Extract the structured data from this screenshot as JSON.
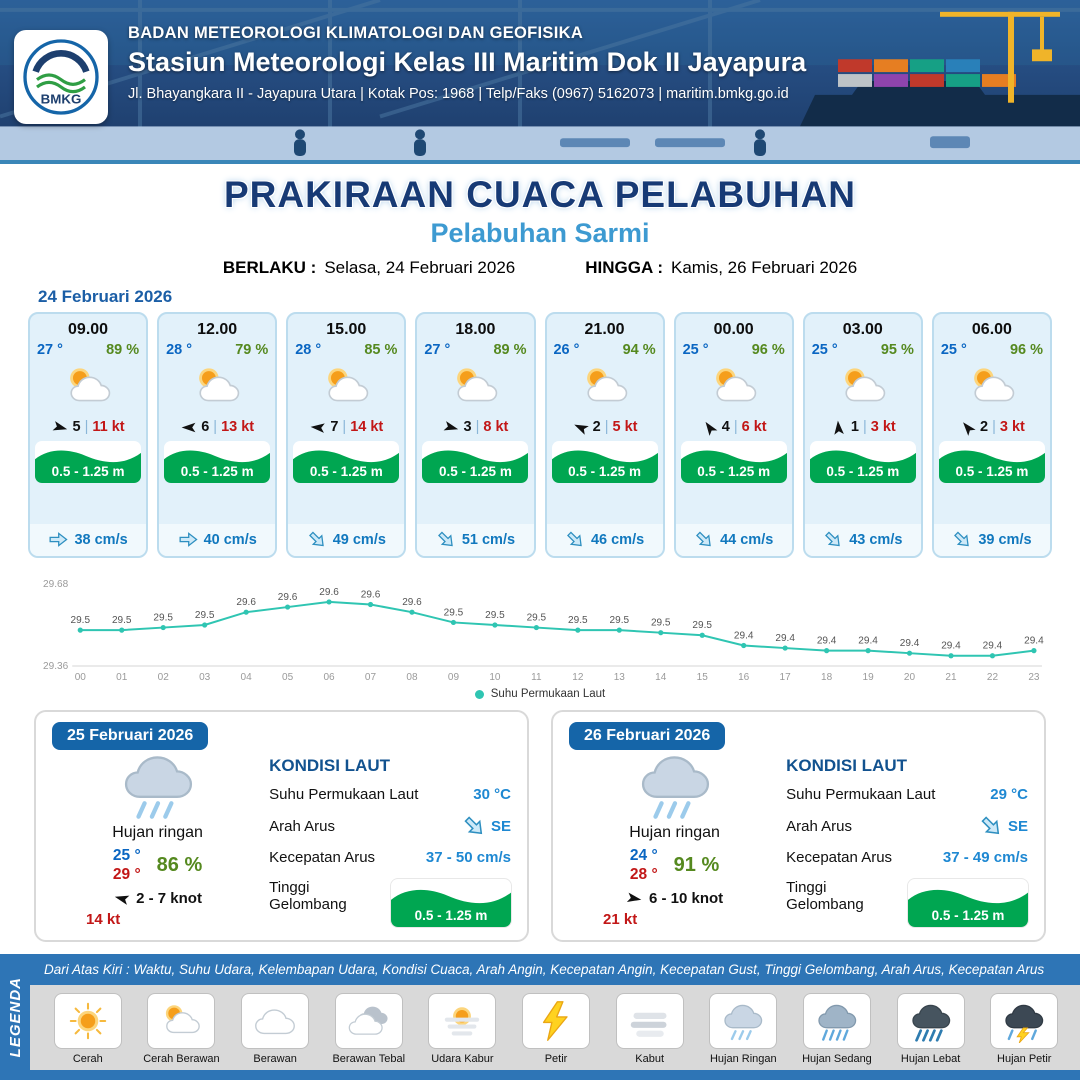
{
  "header": {
    "logo": "BMKG",
    "agency": "BADAN METEOROLOGI KLIMATOLOGI DAN GEOFISIKA",
    "station": "Stasiun Meteorologi Kelas III Maritim Dok II Jayapura",
    "address": "Jl. Bhayangkara II - Jayapura Utara | Kotak Pos: 1968 | Telp/Faks (0967) 5162073 | maritim.bmkg.go.id"
  },
  "title": {
    "main": "PRAKIRAAN CUACA PELABUHAN",
    "subtitle": "Pelabuhan Sarmi",
    "valid_from_label": "BERLAKU :",
    "valid_from": "Selasa, 24 Februari 2026",
    "valid_to_label": "HINGGA :",
    "valid_to": "Kamis, 26 Februari 2026"
  },
  "forecast": {
    "date": "24 Februari 2026",
    "separator": "|",
    "cards": [
      {
        "time": "09.00",
        "temp": "27 °",
        "humidity": "89 %",
        "icon": "cerah-berawan",
        "wind_rot": 15,
        "wind": "5",
        "gust": "11 kt",
        "wave": "0.5 - 1.25 m",
        "current_rot": 0,
        "current": "38 cm/s"
      },
      {
        "time": "12.00",
        "temp": "28 °",
        "humidity": "79 %",
        "icon": "cerah-berawan",
        "wind_rot": 180,
        "wind": "6",
        "gust": "13 kt",
        "wave": "0.5 - 1.25 m",
        "current_rot": 0,
        "current": "40 cm/s"
      },
      {
        "time": "15.00",
        "temp": "28 °",
        "humidity": "85 %",
        "icon": "cerah-berawan",
        "wind_rot": 185,
        "wind": "7",
        "gust": "14 kt",
        "wave": "0.5 - 1.25 m",
        "current_rot": 45,
        "current": "49 cm/s"
      },
      {
        "time": "18.00",
        "temp": "27 °",
        "humidity": "89 %",
        "icon": "cerah-berawan",
        "wind_rot": 15,
        "wind": "3",
        "gust": "8 kt",
        "wave": "0.5 - 1.25 m",
        "current_rot": 45,
        "current": "51 cm/s"
      },
      {
        "time": "21.00",
        "temp": "26 °",
        "humidity": "94 %",
        "icon": "cerah-berawan",
        "wind_rot": 205,
        "wind": "2",
        "gust": "5 kt",
        "wave": "0.5 - 1.25 m",
        "current_rot": 45,
        "current": "46 cm/s"
      },
      {
        "time": "00.00",
        "temp": "25 °",
        "humidity": "96 %",
        "icon": "cerah-berawan",
        "wind_rot": 235,
        "wind": "4",
        "gust": "6 kt",
        "wave": "0.5 - 1.25 m",
        "current_rot": 45,
        "current": "44 cm/s"
      },
      {
        "time": "03.00",
        "temp": "25 °",
        "humidity": "95 %",
        "icon": "cerah-berawan",
        "wind_rot": 265,
        "wind": "1",
        "gust": "3 kt",
        "wave": "0.5 - 1.25 m",
        "current_rot": 45,
        "current": "43 cm/s"
      },
      {
        "time": "06.00",
        "temp": "25 °",
        "humidity": "96 %",
        "icon": "cerah-berawan",
        "wind_rot": 230,
        "wind": "2",
        "gust": "3 kt",
        "wave": "0.5 - 1.25 m",
        "current_rot": 45,
        "current": "39 cm/s"
      }
    ]
  },
  "chart_data": {
    "type": "line",
    "series_name": "Suhu Permukaan Laut",
    "x": [
      "00",
      "01",
      "02",
      "03",
      "04",
      "05",
      "06",
      "07",
      "08",
      "09",
      "10",
      "11",
      "12",
      "13",
      "14",
      "15",
      "16",
      "17",
      "18",
      "19",
      "20",
      "21",
      "22",
      "23"
    ],
    "values": [
      29.5,
      29.5,
      29.51,
      29.52,
      29.57,
      29.59,
      29.61,
      29.6,
      29.57,
      29.53,
      29.52,
      29.51,
      29.5,
      29.5,
      29.49,
      29.48,
      29.44,
      29.43,
      29.42,
      29.42,
      29.41,
      29.4,
      29.4,
      29.42
    ],
    "labels": [
      "29.5",
      "29.5",
      "29.5",
      "29.5",
      "29.6",
      "29.6",
      "29.6",
      "29.6",
      "29.6",
      "29.5",
      "29.5",
      "29.5",
      "29.5",
      "29.5",
      "29.5",
      "29.5",
      "29.4",
      "29.4",
      "29.4",
      "29.4",
      "29.4",
      "29.4",
      "29.4",
      "29.4"
    ],
    "ylim": [
      29.36,
      29.68
    ],
    "yticks": [
      "29.68",
      "29.36"
    ],
    "line_color": "#2fc5b2",
    "grid": false,
    "legend_position": "bottom"
  },
  "day_cards": [
    {
      "date": "25 Februari 2026",
      "icon": "hujan-ringan",
      "condition": "Hujan ringan",
      "temp_min": "25 °",
      "temp_max": "29 °",
      "humidity": "86 %",
      "wind_rot": 195,
      "wind_range": "2  - 7 knot",
      "gust": "14 kt",
      "sea": {
        "heading": "KONDISI LAUT",
        "sst_label": "Suhu Permukaan Laut",
        "sst": "30 °C",
        "current_dir_label": "Arah Arus",
        "current_dir": "SE",
        "current_dir_rot": 45,
        "current_speed_label": "Kecepatan Arus",
        "current_speed": "37  - 50 cm/s",
        "wave_label": "Tinggi Gelombang",
        "wave": "0.5 - 1.25 m"
      }
    },
    {
      "date": "26 Februari 2026",
      "icon": "hujan-ringan",
      "condition": "Hujan ringan",
      "temp_min": "24 °",
      "temp_max": "28 °",
      "humidity": "91 %",
      "wind_rot": 10,
      "wind_range": "6  - 10 knot",
      "gust": "21 kt",
      "sea": {
        "heading": "KONDISI LAUT",
        "sst_label": "Suhu Permukaan Laut",
        "sst": "29 °C",
        "current_dir_label": "Arah Arus",
        "current_dir": "SE",
        "current_dir_rot": 45,
        "current_speed_label": "Kecepatan Arus",
        "current_speed": "37  - 49 cm/s",
        "wave_label": "Tinggi Gelombang",
        "wave": "0.5 - 1.25 m"
      }
    }
  ],
  "legend": {
    "tab": "LEGENDA",
    "note": "Dari Atas Kiri : Waktu, Suhu Udara, Kelembapan Udara, Kondisi Cuaca, Arah Angin, Kecepatan Angin, Kecepatan Gust, Tinggi Gelombang, Arah Arus, Kecepatan Arus",
    "items": [
      {
        "label": "Cerah",
        "icon": "cerah"
      },
      {
        "label": "Cerah Berawan",
        "icon": "cerah-berawan"
      },
      {
        "label": "Berawan",
        "icon": "berawan"
      },
      {
        "label": "Berawan Tebal",
        "icon": "berawan-tebal"
      },
      {
        "label": "Udara Kabur",
        "icon": "udara-kabur"
      },
      {
        "label": "Petir",
        "icon": "petir"
      },
      {
        "label": "Kabut",
        "icon": "kabut"
      },
      {
        "label": "Hujan Ringan",
        "icon": "hujan-ringan"
      },
      {
        "label": "Hujan Sedang",
        "icon": "hujan-sedang"
      },
      {
        "label": "Hujan Lebat",
        "icon": "hujan-lebat"
      },
      {
        "label": "Hujan Petir",
        "icon": "hujan-petir"
      }
    ]
  },
  "colors": {
    "header_bg": "#24497c",
    "title_navy": "#173a75",
    "subtitle_blue": "#3d9ad1",
    "wave_green": "#00a651",
    "temp_blue": "#0a66c2",
    "humidity_green": "#55891f",
    "gust_red": "#c21717",
    "current_blue": "#1178be",
    "legend_bar_blue": "#2e75b6",
    "sst_line_teal": "#2fc5b2"
  }
}
